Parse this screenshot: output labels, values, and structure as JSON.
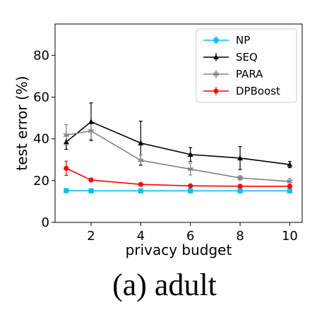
{
  "chart_data": {
    "type": "line",
    "xlabel": "privacy budget",
    "ylabel": "test error (%)",
    "xlim": [
      0.55,
      10.5
    ],
    "ylim": [
      0,
      95
    ],
    "xticks": [
      2,
      4,
      6,
      8,
      10
    ],
    "yticks": [
      0,
      20,
      40,
      60,
      80
    ],
    "legend_position": "top-right",
    "grid": false,
    "x": [
      1,
      2,
      4,
      6,
      8,
      10
    ],
    "series": [
      {
        "name": "NP",
        "color": "#00bfef",
        "marker": "square",
        "values": [
          15.2,
          15.1,
          15.1,
          15.1,
          15.1,
          15.1
        ],
        "errors": [
          0.4,
          0.4,
          0.4,
          0.4,
          0.4,
          0.4
        ]
      },
      {
        "name": "SEQ",
        "color": "#000000",
        "marker": "triangle",
        "values": [
          38.5,
          48.2,
          38.0,
          32.5,
          30.8,
          27.7
        ],
        "errors": [
          3.5,
          9.0,
          10.5,
          3.3,
          5.5,
          1.5
        ]
      },
      {
        "name": "PARA",
        "color": "#808080",
        "marker": "star",
        "values": [
          41.8,
          43.8,
          29.7,
          25.5,
          21.3,
          19.6
        ],
        "errors": [
          5.0,
          4.0,
          2.5,
          2.8,
          1.0,
          1.3
        ]
      },
      {
        "name": "DPBoost",
        "color": "#ff0000",
        "marker": "circle",
        "values": [
          25.9,
          20.3,
          18.2,
          17.5,
          17.3,
          17.3
        ],
        "errors": [
          3.4,
          0.4,
          0.4,
          0.3,
          0.3,
          0.3
        ]
      }
    ]
  },
  "caption": "(a) adult"
}
